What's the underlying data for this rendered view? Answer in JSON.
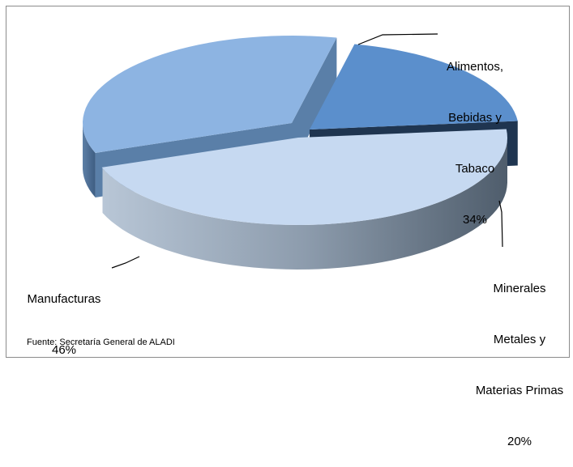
{
  "chart_data": {
    "type": "pie",
    "style": "3d-exploded",
    "title": "",
    "slices": [
      {
        "name": "Alimentos, Bebidas y Tabaco",
        "label_lines": [
          "Alimentos,",
          "Bebidas y",
          "Tabaco"
        ],
        "percent_label": "34%",
        "value": 34,
        "color_top": "#8db4e2",
        "color_side": "#5a7fa8"
      },
      {
        "name": "Minerales Metales y Materias Primas",
        "label_lines": [
          "Minerales",
          "Metales y",
          "Materias Primas"
        ],
        "percent_label": "20%",
        "value": 20,
        "color_top": "#5b8fcc",
        "color_side": "#1f3550"
      },
      {
        "name": "Manufacturas",
        "label_lines": [
          "Manufacturas"
        ],
        "percent_label": "46%",
        "value": 46,
        "color_top": "#c6d9f1",
        "color_side": "#6f7f90"
      }
    ]
  },
  "source_note": "Fuente: Secretaría General de ALADI"
}
